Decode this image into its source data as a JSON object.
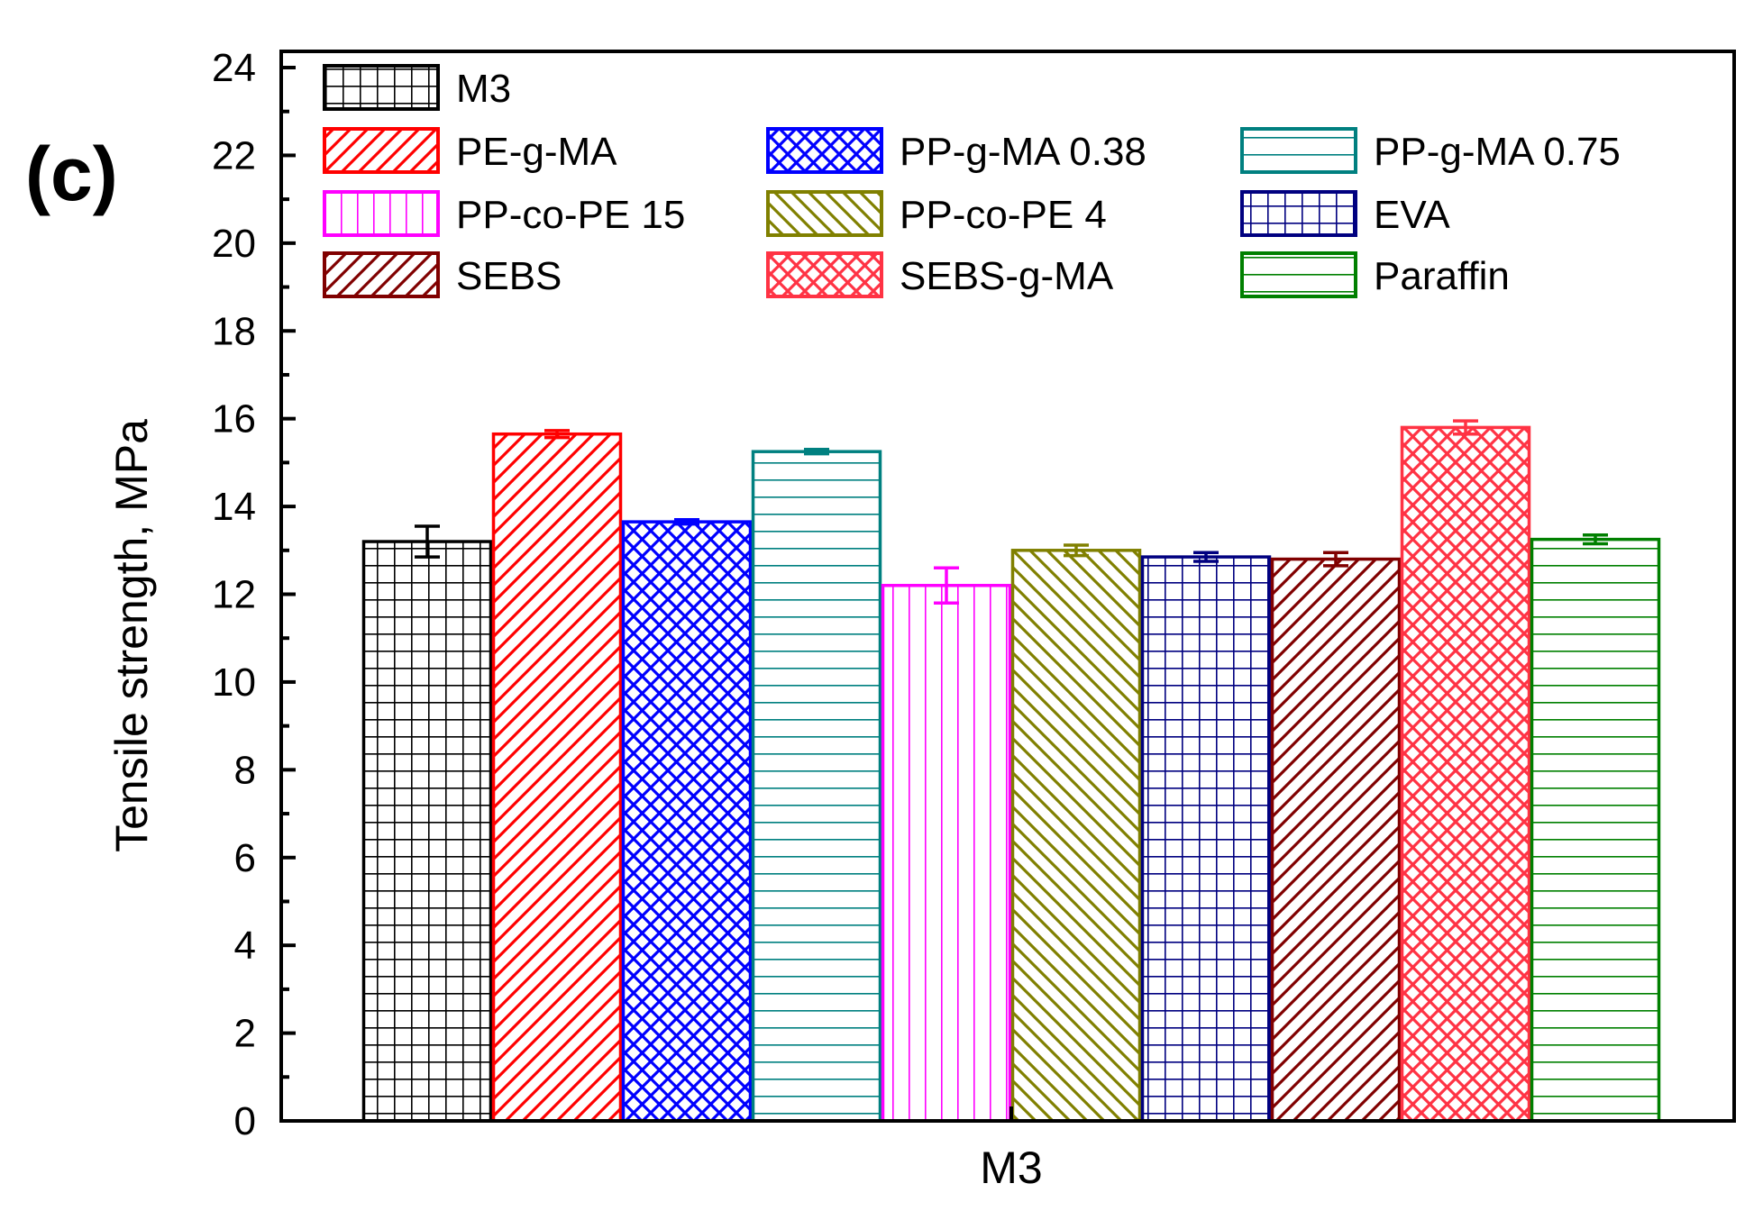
{
  "panel_label": "(c)",
  "chart_data": {
    "type": "bar",
    "title": "",
    "xlabel": "M3",
    "ylabel": "Tensile strength, MPa",
    "ylim": [
      0,
      24
    ],
    "yticks": [
      0,
      2,
      4,
      6,
      8,
      10,
      12,
      14,
      16,
      18,
      20,
      22,
      24
    ],
    "categories": [
      "M3"
    ],
    "grid": false,
    "legend_position": "top-left, three columns",
    "series": [
      {
        "name": "M3",
        "values": [
          13.2
        ],
        "error": [
          0.35
        ],
        "color": "#000000",
        "pattern": "grid"
      },
      {
        "name": "PE-g-MA",
        "values": [
          15.65
        ],
        "error": [
          0.08
        ],
        "color": "#ff0000",
        "pattern": "diag-up"
      },
      {
        "name": "PP-g-MA 0.38",
        "values": [
          13.65
        ],
        "error": [
          0.05
        ],
        "color": "#0000ff",
        "pattern": "crosshatch"
      },
      {
        "name": "PP-g-MA 0.75",
        "values": [
          15.25
        ],
        "error": [
          0.05
        ],
        "color": "#008080",
        "pattern": "horizontal"
      },
      {
        "name": "PP-co-PE 15",
        "values": [
          12.2
        ],
        "error": [
          0.4
        ],
        "color": "#ff00ff",
        "pattern": "vertical"
      },
      {
        "name": "PP-co-PE 4",
        "values": [
          13.0
        ],
        "error": [
          0.12
        ],
        "color": "#808000",
        "pattern": "diag-down"
      },
      {
        "name": "EVA",
        "values": [
          12.85
        ],
        "error": [
          0.1
        ],
        "color": "#000080",
        "pattern": "grid"
      },
      {
        "name": "SEBS",
        "values": [
          12.8
        ],
        "error": [
          0.15
        ],
        "color": "#800000",
        "pattern": "diag-up"
      },
      {
        "name": "SEBS-g-MA",
        "values": [
          15.8
        ],
        "error": [
          0.15
        ],
        "color": "#ff3344",
        "pattern": "crosshatch"
      },
      {
        "name": "Paraffin",
        "values": [
          13.25
        ],
        "error": [
          0.1
        ],
        "color": "#008000",
        "pattern": "horizontal"
      }
    ]
  }
}
